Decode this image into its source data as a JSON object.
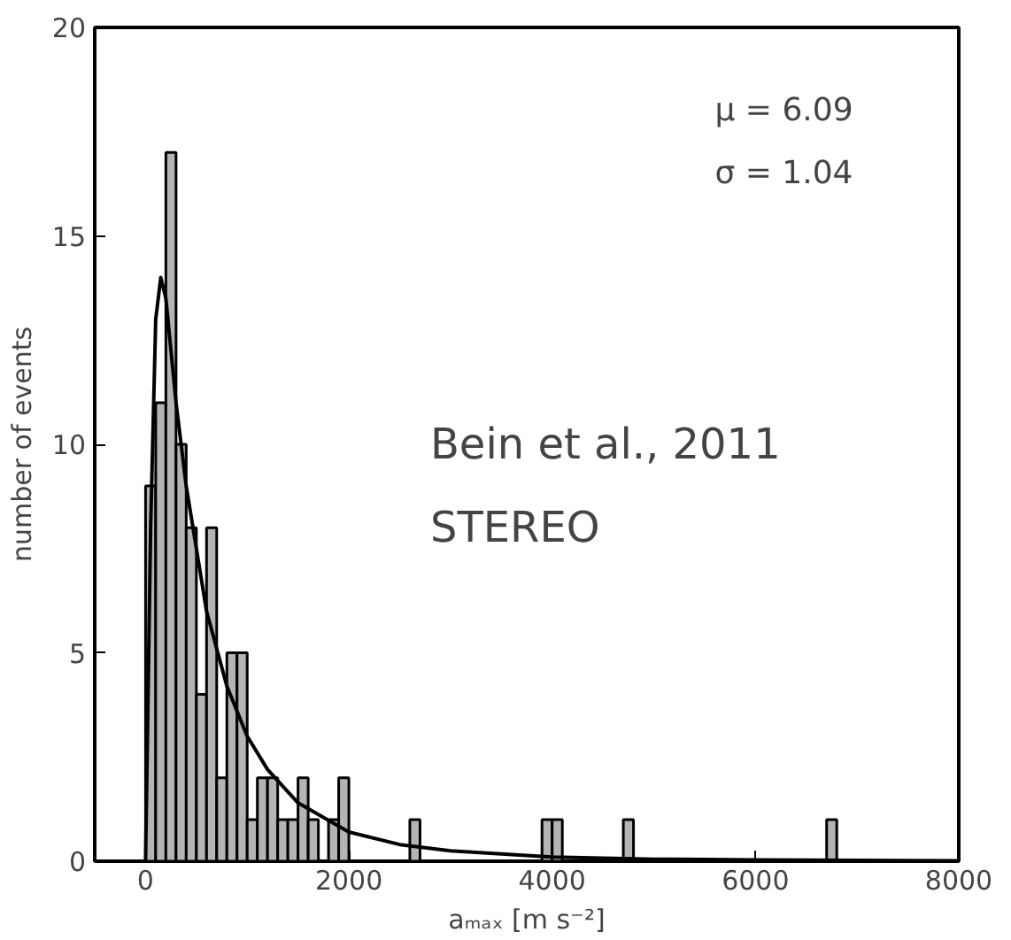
{
  "chart_data": {
    "type": "histogram",
    "xlabel": "aₘₐₓ [m s⁻²]",
    "ylabel": "number of events",
    "bins": [
      0,
      100,
      200,
      300,
      400,
      500,
      600,
      700,
      800,
      900,
      1000,
      1100,
      1200,
      1300,
      1400,
      1500,
      1600,
      1700,
      1800,
      1900,
      2000,
      2100,
      2200,
      2300,
      2400,
      2500,
      2600,
      2700,
      2800,
      2900,
      3000,
      3100,
      3200,
      3300,
      3400,
      3500,
      3600,
      3700,
      3800,
      3900,
      4000,
      4100,
      4200,
      4300,
      4400,
      4500,
      4600,
      4700,
      4800,
      4900,
      5000,
      5100,
      5200,
      5300,
      5400,
      5500,
      5600,
      5700,
      5800,
      5900,
      6000,
      6100,
      6200,
      6300,
      6400,
      6500,
      6600,
      6700,
      6800
    ],
    "values": [
      9,
      11,
      17,
      10,
      8,
      4,
      8,
      2,
      5,
      5,
      1,
      2,
      2,
      1,
      1,
      2,
      1,
      0,
      1,
      2,
      0,
      0,
      0,
      0,
      0,
      0,
      1,
      0,
      0,
      0,
      0,
      0,
      0,
      0,
      0,
      0,
      0,
      0,
      0,
      1,
      1,
      0,
      0,
      0,
      0,
      0,
      0,
      1,
      0,
      0,
      0,
      0,
      0,
      0,
      0,
      0,
      0,
      0,
      0,
      0,
      0,
      0,
      0,
      0,
      0,
      0,
      0,
      1
    ],
    "color": "#b4b4b4",
    "series": [
      {
        "type": "line",
        "color": "#000000",
        "x": [
          0,
          50,
          100,
          150,
          200,
          300,
          400,
          500,
          600,
          800,
          1000,
          1200,
          1500,
          2000,
          2500,
          3000,
          4000,
          5000,
          6000,
          8000
        ],
        "values": [
          0,
          8,
          13,
          14,
          13.5,
          11,
          9,
          7.5,
          6,
          4.2,
          3,
          2.2,
          1.4,
          0.7,
          0.4,
          0.25,
          0.1,
          0.05,
          0.03,
          0.01
        ]
      }
    ],
    "annotations": [
      "μ = 6.09",
      "σ = 1.04",
      "Bein et al., 2011",
      "STEREO"
    ],
    "xlim": [
      -500,
      8000
    ],
    "ylim": [
      0,
      20
    ],
    "xticks": [
      0,
      2000,
      4000,
      6000,
      8000
    ],
    "yticks": [
      0,
      5,
      10,
      15,
      20
    ],
    "grid": false
  }
}
